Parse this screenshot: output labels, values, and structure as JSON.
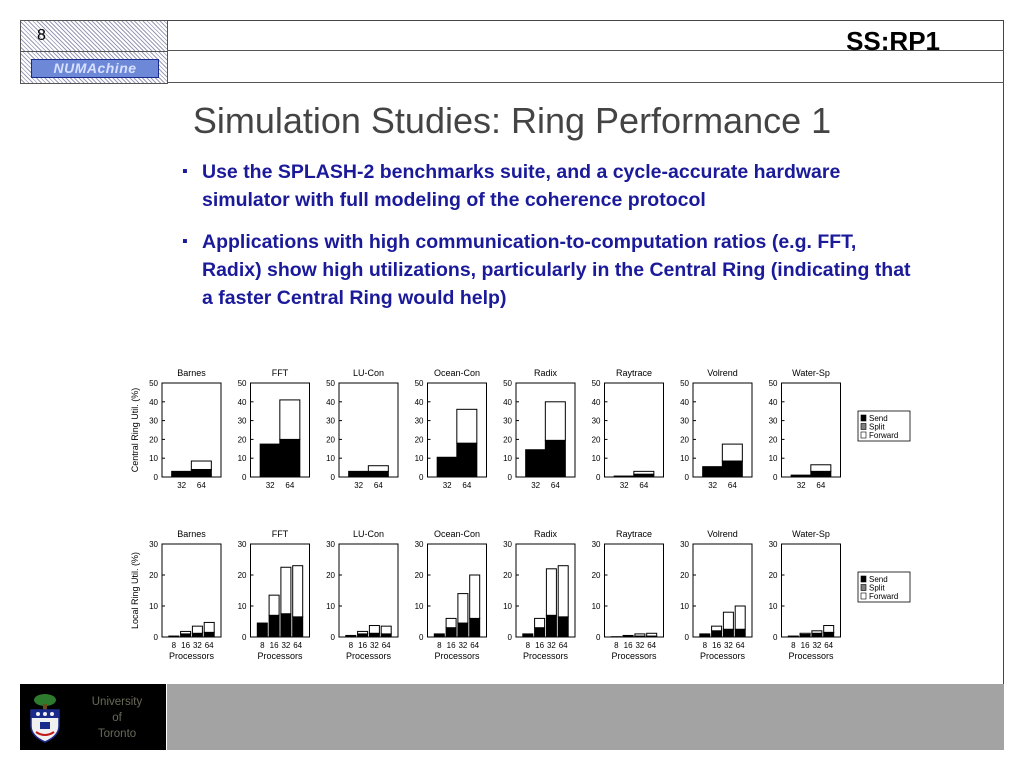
{
  "header": {
    "slide_number": "8",
    "logo": "NUMAchine",
    "code": "SS:RP1"
  },
  "title": "Simulation Studies: Ring Performance 1",
  "bullets": [
    "Use the SPLASH-2 benchmarks suite, and a cycle-accurate hardware simulator with full modeling of the coherence protocol",
    "Applications with high communication-to-computation ratios (e.g. FFT, Radix) show high utilizations, particularly in the Central Ring (indicating that a faster Central Ring would help)"
  ],
  "footer": {
    "university_lines": [
      "University",
      "of",
      "Toronto"
    ],
    "crest_icon": "university-crest-icon"
  },
  "colors": {
    "bullet_text": "#1a1a9a",
    "title": "#444444",
    "footer_bar": "#a3a3a3"
  },
  "chart_data": [
    {
      "type": "bar",
      "stacked": true,
      "ylabel": "Central Ring Util. (%)",
      "xlabel": "",
      "ylim": [
        0,
        50
      ],
      "yticks": [
        0,
        10,
        20,
        30,
        40,
        50
      ],
      "categories": [
        "32",
        "64"
      ],
      "legend": [
        "Send",
        "Split",
        "Forward"
      ],
      "legend_position": "right",
      "panels": [
        {
          "title": "Barnes",
          "send": [
            3,
            4
          ],
          "split": [
            0,
            0
          ],
          "forward": [
            0,
            4.5
          ]
        },
        {
          "title": "FFT",
          "send": [
            17.5,
            20
          ],
          "split": [
            0,
            0
          ],
          "forward": [
            0,
            21
          ]
        },
        {
          "title": "LU-Con",
          "send": [
            3,
            3
          ],
          "split": [
            0,
            0
          ],
          "forward": [
            0,
            3
          ]
        },
        {
          "title": "Ocean-Con",
          "send": [
            10.5,
            18
          ],
          "split": [
            0,
            0
          ],
          "forward": [
            0,
            18
          ]
        },
        {
          "title": "Radix",
          "send": [
            14.5,
            19.5
          ],
          "split": [
            0,
            0
          ],
          "forward": [
            0,
            20.5
          ]
        },
        {
          "title": "Raytrace",
          "send": [
            0.5,
            1.5
          ],
          "split": [
            0,
            0
          ],
          "forward": [
            0,
            1.5
          ]
        },
        {
          "title": "Volrend",
          "send": [
            5.5,
            8.5
          ],
          "split": [
            0,
            0
          ],
          "forward": [
            0,
            9
          ]
        },
        {
          "title": "Water-Sp",
          "send": [
            1,
            3
          ],
          "split": [
            0,
            0
          ],
          "forward": [
            0,
            3.5
          ]
        }
      ]
    },
    {
      "type": "bar",
      "stacked": true,
      "ylabel": "Local Ring Util. (%)",
      "xlabel": "Processors",
      "ylim": [
        0,
        30
      ],
      "yticks": [
        0,
        10,
        20,
        30
      ],
      "categories": [
        "8",
        "16",
        "32",
        "64"
      ],
      "legend": [
        "Send",
        "Split",
        "Forward"
      ],
      "legend_position": "right",
      "panels": [
        {
          "title": "Barnes",
          "send": [
            0.3,
            1,
            1.2,
            1.5
          ],
          "split": [
            0,
            0,
            0,
            0
          ],
          "forward": [
            0,
            0.8,
            2.3,
            3.2
          ]
        },
        {
          "title": "FFT",
          "send": [
            4.5,
            7,
            7.5,
            6.5
          ],
          "split": [
            0,
            0,
            0,
            0
          ],
          "forward": [
            0,
            6.5,
            15,
            16.5
          ]
        },
        {
          "title": "LU-Con",
          "send": [
            0.5,
            1,
            1.2,
            1
          ],
          "split": [
            0,
            0,
            0,
            0
          ],
          "forward": [
            0,
            0.8,
            2.5,
            2.5
          ]
        },
        {
          "title": "Ocean-Con",
          "send": [
            1,
            3,
            4.5,
            6
          ],
          "split": [
            0,
            0,
            0,
            0
          ],
          "forward": [
            0,
            3,
            9.5,
            14
          ]
        },
        {
          "title": "Radix",
          "send": [
            1,
            3,
            7,
            6.5
          ],
          "split": [
            0,
            0,
            0,
            0
          ],
          "forward": [
            0,
            3,
            15,
            16.5
          ]
        },
        {
          "title": "Raytrace",
          "send": [
            0.1,
            0.2,
            0.3,
            0.3
          ],
          "split": [
            0,
            0,
            0,
            0
          ],
          "forward": [
            0,
            0.3,
            0.7,
            0.9
          ]
        },
        {
          "title": "Volrend",
          "send": [
            1,
            2,
            2.5,
            2.5
          ],
          "split": [
            0,
            0,
            0,
            0
          ],
          "forward": [
            0,
            1.5,
            5.5,
            7.5
          ]
        },
        {
          "title": "Water-Sp",
          "send": [
            0.3,
            0.8,
            1.2,
            1.5
          ],
          "split": [
            0,
            0,
            0,
            0
          ],
          "forward": [
            0,
            0.4,
            0.8,
            2.2
          ]
        }
      ]
    }
  ]
}
